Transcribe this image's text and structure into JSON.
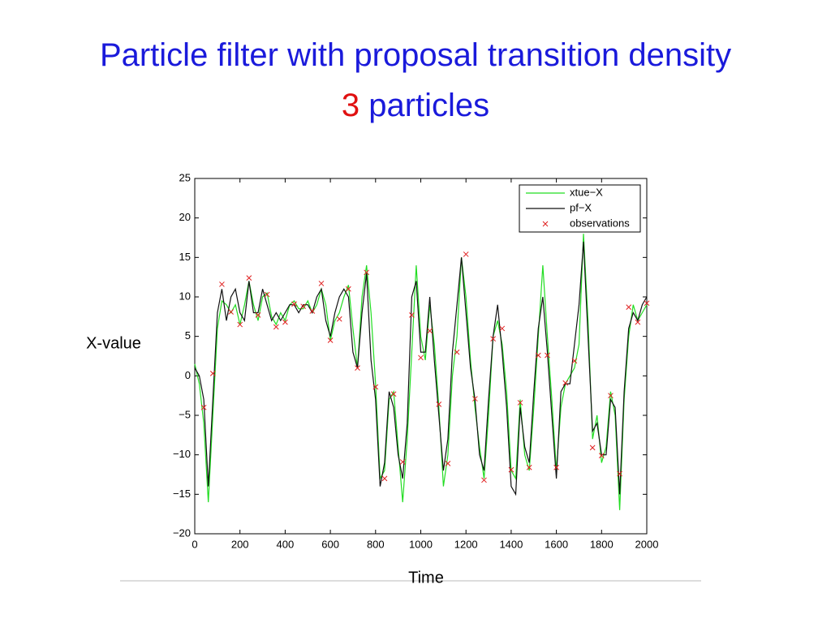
{
  "slide": {
    "title": "Particle filter with proposal transition density",
    "title_number": "3",
    "title_suffix": "particles"
  },
  "chart_data": {
    "type": "line",
    "xlabel": "Time",
    "ylabel": "X-value",
    "xlim": [
      0,
      2000
    ],
    "ylim": [
      -20,
      25
    ],
    "xticks": [
      0,
      200,
      400,
      600,
      800,
      1000,
      1200,
      1400,
      1600,
      1800,
      2000
    ],
    "yticks": [
      {
        "value": -20,
        "label": "−20"
      },
      {
        "value": -15,
        "label": "−15"
      },
      {
        "value": -10,
        "label": "−10"
      },
      {
        "value": -5,
        "label": "−5"
      },
      0,
      5,
      10,
      15,
      20,
      25
    ],
    "grid": false,
    "legend": "upper right",
    "x": [
      0,
      20,
      40,
      60,
      80,
      100,
      120,
      140,
      160,
      180,
      200,
      220,
      240,
      260,
      280,
      300,
      320,
      340,
      360,
      380,
      400,
      420,
      440,
      460,
      480,
      500,
      520,
      540,
      560,
      580,
      600,
      620,
      640,
      660,
      680,
      700,
      720,
      740,
      760,
      780,
      800,
      820,
      840,
      860,
      880,
      900,
      920,
      940,
      960,
      980,
      1000,
      1020,
      1040,
      1060,
      1080,
      1100,
      1120,
      1140,
      1160,
      1180,
      1200,
      1220,
      1240,
      1260,
      1280,
      1300,
      1320,
      1340,
      1360,
      1380,
      1400,
      1420,
      1440,
      1460,
      1480,
      1500,
      1520,
      1540,
      1560,
      1580,
      1600,
      1620,
      1640,
      1660,
      1680,
      1700,
      1720,
      1740,
      1760,
      1780,
      1800,
      1820,
      1840,
      1860,
      1880,
      1900,
      1920,
      1940,
      1960,
      1980,
      2000
    ],
    "series": [
      {
        "name": "xtue−X",
        "color": "#22dd22",
        "mode": "line",
        "values": [
          1.5,
          -1,
          -6,
          -16,
          -5,
          6,
          9.5,
          9,
          8,
          9,
          6.5,
          9,
          12,
          9,
          7,
          10,
          10.5,
          7.5,
          6.5,
          8,
          7,
          9,
          9.5,
          8.5,
          8.5,
          9.5,
          8,
          9,
          11,
          9,
          4.5,
          7,
          8,
          10,
          11.5,
          6,
          1,
          10,
          14,
          8,
          -1,
          -13,
          -12,
          -3,
          -2,
          -9,
          -16,
          -8,
          3,
          14,
          5,
          2,
          9,
          4,
          -4,
          -14,
          -10,
          0,
          5,
          15,
          10,
          2,
          -4,
          -9,
          -13,
          -5,
          5,
          7,
          4,
          -2,
          -12,
          -13,
          -3,
          -10,
          -12,
          -4,
          5,
          14,
          5,
          -3,
          -12,
          -4,
          -1,
          0,
          1,
          4,
          18,
          7,
          -8,
          -5,
          -11,
          -9,
          -2,
          -5,
          -17,
          -3,
          5,
          9,
          7,
          8,
          9
        ]
      },
      {
        "name": "pf−X",
        "color": "#111111",
        "mode": "line",
        "values": [
          1,
          0,
          -3,
          -14,
          -3,
          8,
          11,
          7,
          10,
          11,
          8,
          7,
          12,
          8,
          8,
          11,
          9,
          7,
          8,
          7,
          8,
          9,
          9,
          8,
          9,
          9,
          8,
          10,
          11,
          7,
          5,
          8,
          10,
          11,
          10,
          3,
          1,
          8,
          13,
          2,
          -3,
          -14,
          -11,
          -2,
          -4,
          -10,
          -13,
          -6,
          10,
          12,
          3,
          3,
          10,
          2,
          -5,
          -12,
          -8,
          3,
          9,
          15,
          8,
          1,
          -3,
          -10,
          -12,
          -3,
          5,
          9,
          3,
          -4,
          -14,
          -15,
          -4,
          -9,
          -11,
          -2,
          6,
          10,
          3,
          -5,
          -13,
          -2,
          -1,
          -1,
          4,
          9,
          17,
          5,
          -7,
          -6,
          -10,
          -10,
          -3,
          -4,
          -15,
          -2,
          6,
          8,
          7,
          9,
          10
        ]
      },
      {
        "name": "observations",
        "color": "#e02020",
        "mode": "markers",
        "x": [
          40,
          80,
          120,
          160,
          200,
          240,
          280,
          320,
          360,
          400,
          440,
          480,
          520,
          560,
          600,
          640,
          680,
          720,
          760,
          800,
          840,
          880,
          920,
          960,
          1000,
          1040,
          1080,
          1120,
          1160,
          1200,
          1240,
          1280,
          1320,
          1360,
          1400,
          1440,
          1480,
          1520,
          1560,
          1600,
          1640,
          1680,
          1760,
          1800,
          1840,
          1880,
          1920,
          1960,
          2000
        ],
        "values": [
          -4,
          0.3,
          11.6,
          8.1,
          6.5,
          12.4,
          7.7,
          10.3,
          6.2,
          6.8,
          9.1,
          8.8,
          8.2,
          11.7,
          4.5,
          7.2,
          11,
          1,
          13.1,
          -1.4,
          -13,
          -2.3,
          -10.9,
          7.7,
          2.3,
          5.7,
          -3.6,
          -11.1,
          3,
          15.4,
          -2.9,
          -13.2,
          4.7,
          6,
          -11.9,
          -3.4,
          -11.6,
          2.6,
          2.6,
          -11.6,
          -0.9,
          1.9,
          -9.1,
          -10.1,
          -2.5,
          -12.4,
          8.7,
          6.8,
          9.2
        ]
      }
    ]
  }
}
